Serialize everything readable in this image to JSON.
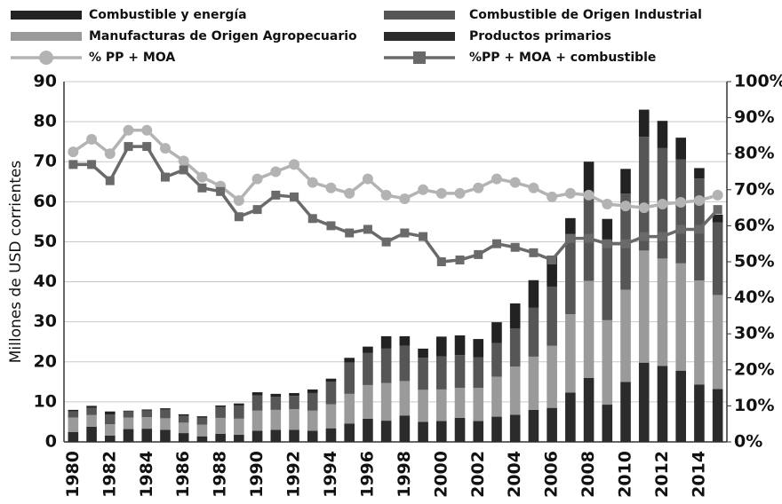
{
  "chart_data": {
    "type": "bar",
    "stacked": true,
    "y_label": "Millones de USD corrientes",
    "categories": [
      "1980",
      null,
      "1982",
      null,
      "1984",
      null,
      "1986",
      null,
      "1988",
      null,
      "1990",
      null,
      "1992",
      null,
      "1994",
      null,
      "1996",
      null,
      "1998",
      null,
      "2000",
      null,
      "2002",
      null,
      "2004",
      null,
      "2006",
      null,
      "2008",
      null,
      "2010",
      null,
      "2012",
      null,
      "2014",
      null
    ],
    "series": [
      {
        "name": "Productos primarios",
        "color": "#2b2b2b",
        "values": [
          2.5,
          3.8,
          1.6,
          3.2,
          3.3,
          3.0,
          2.2,
          1.4,
          2.0,
          1.8,
          2.8,
          3.0,
          3.0,
          2.8,
          3.4,
          4.6,
          5.8,
          5.3,
          6.6,
          5.0,
          5.2,
          6.0,
          5.2,
          6.3,
          6.8,
          8.0,
          8.5,
          12.3,
          16,
          9.3,
          15,
          19.8,
          19,
          17.8,
          14.3,
          13.2
        ]
      },
      {
        "name": "Manufacturas de Origen Agropecuario",
        "color": "#9a9a9a",
        "values": [
          3.6,
          2.9,
          2.8,
          2.9,
          2.9,
          2.9,
          2.6,
          2.9,
          4.0,
          4.0,
          5.0,
          5.0,
          5.2,
          5.0,
          6.0,
          7.4,
          8.4,
          9.4,
          8.6,
          8.0,
          7.9,
          7.5,
          8.3,
          10,
          12,
          13.3,
          15.5,
          19.6,
          24.2,
          21.1,
          23,
          28,
          26.8,
          26.8,
          26,
          23.5
        ]
      },
      {
        "name": "Combustible de Origen Industrial",
        "color": "#565656",
        "values": [
          1.5,
          1.8,
          2.4,
          1.5,
          1.6,
          2.2,
          1.7,
          1.8,
          2.7,
          3.3,
          3.8,
          3.3,
          3.3,
          4.4,
          5.6,
          7.8,
          8.0,
          8.6,
          8.8,
          8.0,
          8.3,
          8.2,
          7.6,
          8.4,
          9.5,
          12.2,
          14.8,
          20,
          21.8,
          20,
          24,
          28.4,
          27.6,
          26,
          25.5,
          18.1
        ]
      },
      {
        "name": "Combustible y energía",
        "color": "#222222",
        "values": [
          0.4,
          0.5,
          0.8,
          0.2,
          0.3,
          0.3,
          0.4,
          0.3,
          0.4,
          0.5,
          0.8,
          0.7,
          0.7,
          0.9,
          0.8,
          1.2,
          1.6,
          3.1,
          2.4,
          2.3,
          4.9,
          4.9,
          4.6,
          5.2,
          6.3,
          6.9,
          7.7,
          4,
          8,
          5.3,
          6.2,
          6.8,
          6.8,
          5.4,
          2.6,
          2.0
        ]
      },
      {
        "name": "% PP + MOA",
        "type": "line",
        "axis": "y2",
        "marker": "circle",
        "color": "#b3b3b3",
        "values": [
          80.5,
          84,
          80,
          86.5,
          86.5,
          81.5,
          78,
          73.5,
          71,
          67,
          73,
          75,
          77,
          72,
          70.5,
          69,
          73,
          68.5,
          67.5,
          70,
          69,
          69,
          70.5,
          73,
          72,
          70.5,
          68,
          69,
          68.5,
          66,
          65.5,
          65,
          66,
          66.5,
          67,
          68.5
        ]
      },
      {
        "name": "%PP + MOA + combustible",
        "type": "line",
        "axis": "y2",
        "marker": "square",
        "color": "#6a6a6a",
        "values": [
          77,
          77,
          72.5,
          82,
          82,
          73.5,
          75.5,
          70.5,
          69.5,
          62.5,
          64.5,
          68.5,
          68,
          62,
          60,
          58,
          59,
          55.5,
          58,
          57,
          50,
          50.5,
          52,
          55,
          54,
          52.5,
          50.5,
          56.5,
          56.5,
          55,
          55,
          57,
          57,
          59,
          59,
          64.5
        ]
      }
    ],
    "ylim": [
      0,
      90
    ],
    "yticks": [
      0,
      10,
      20,
      30,
      40,
      50,
      60,
      70,
      80,
      90
    ],
    "y2lim": [
      0,
      100
    ],
    "y2ticks": [
      {
        "value": 0,
        "label": "0%"
      },
      {
        "value": 10,
        "label": "10%"
      },
      {
        "value": 20,
        "label": "20%"
      },
      {
        "value": 30,
        "label": "30%"
      },
      {
        "value": 40,
        "label": "40%"
      },
      {
        "value": 50,
        "label": "50%"
      },
      {
        "value": 60,
        "label": "60%"
      },
      {
        "value": 70,
        "label": "70%"
      },
      {
        "value": 80,
        "label": "80%"
      },
      {
        "value": 90,
        "label": "90%"
      },
      {
        "value": 100,
        "label": "100%"
      }
    ],
    "grid": true
  }
}
